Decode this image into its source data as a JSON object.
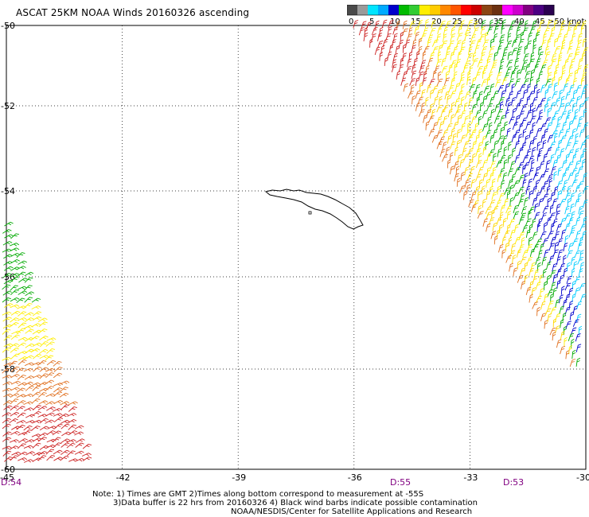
{
  "title": "ASCAT 25KM NOAA Winds 20160326 ascending",
  "legend": {
    "ticks": [
      "0",
      "5",
      "10",
      "15",
      "20",
      "25",
      "30",
      "35",
      "40",
      "45",
      ">50 knots"
    ],
    "colors": [
      "#4a4a4a",
      "#9a9a9a",
      "#00e5ff",
      "#00aaff",
      "#0000cc",
      "#00bb00",
      "#33cc33",
      "#ffee00",
      "#ffcc00",
      "#ff8800",
      "#ff5500",
      "#ff0000",
      "#cc0000",
      "#8b4513",
      "#6b3010",
      "#ff00ff",
      "#cc00cc",
      "#800080",
      "#4b0082",
      "#2a0050"
    ]
  },
  "axes": {
    "lon_ticks": [
      "-45",
      "-42",
      "-39",
      "-36",
      "-33",
      "-30"
    ],
    "lat_ticks": [
      "-50",
      "-52",
      "-54",
      "-56",
      "-58",
      "-60"
    ],
    "lon_range": [
      -45,
      -30
    ],
    "lat_range": [
      -60,
      -50
    ],
    "grid": "dotted"
  },
  "pass_times": [
    "D:54",
    "D:55",
    "D:53"
  ],
  "notes": {
    "line1": "Note: 1) Times are GMT 2)Times along bottom correspond to measurement at -55S",
    "line2": "3)Data buffer is 22 hrs from 20160326 4) Black wind barbs indicate possible contamination",
    "line3": "NOAA/NESDIS/Center for Satellite Applications and Research"
  },
  "map_data": {
    "island": "South Georgia",
    "swaths": [
      {
        "side": "east",
        "speed_colors": [
          "#cc2222",
          "#e07020",
          "#ffd700",
          "#ffee00",
          "#00aa00",
          "#0000cc",
          "#00ccff"
        ]
      },
      {
        "side": "west",
        "speed_colors": [
          "#00aa00",
          "#ffee00",
          "#ffd700",
          "#e07020",
          "#cc2222"
        ]
      }
    ]
  }
}
